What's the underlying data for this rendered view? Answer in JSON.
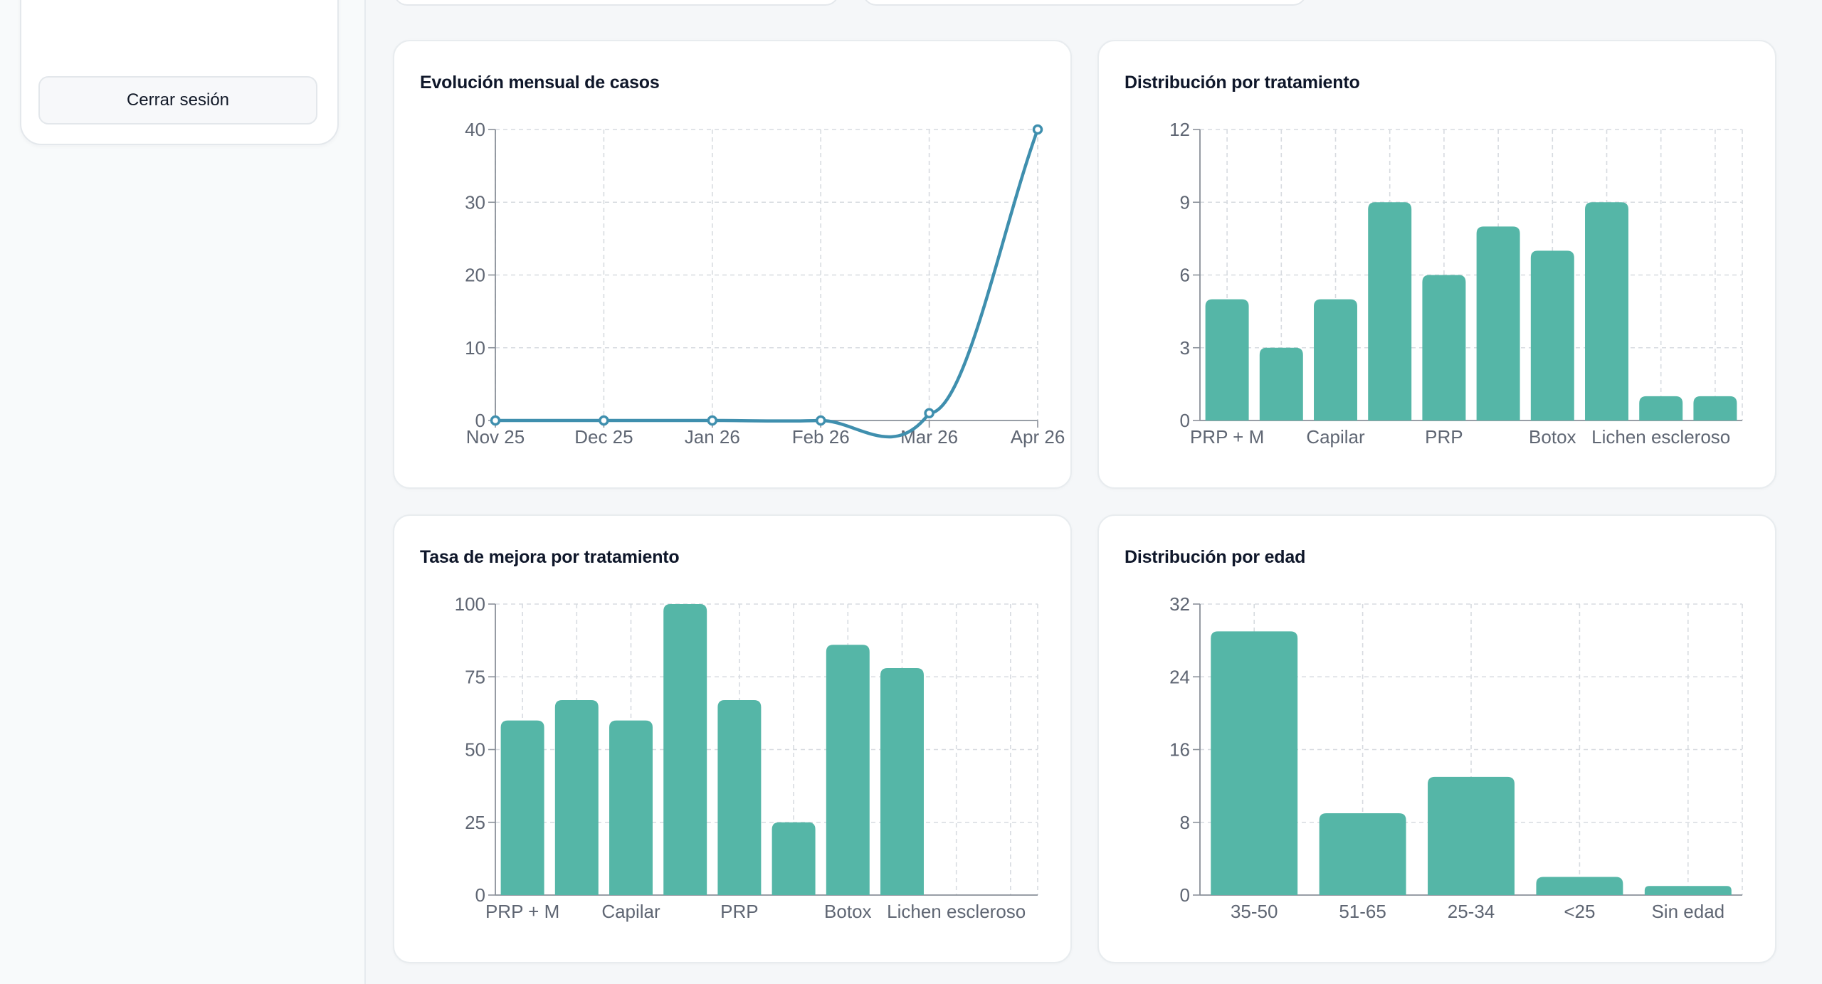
{
  "sidebar": {
    "logout_label": "Cerrar sesión"
  },
  "colors": {
    "bar": "#55b6a7",
    "line": "#3f8fae",
    "grid": "#d7dbe0",
    "axis": "#8a9099"
  },
  "chart_data": [
    {
      "id": "monthly",
      "type": "line",
      "title": "Evolución mensual de casos",
      "x": [
        "Nov 25",
        "Dec 25",
        "Jan 26",
        "Feb 26",
        "Mar 26",
        "Apr 26"
      ],
      "values": [
        0,
        0,
        0,
        0,
        1,
        40
      ],
      "ylim": [
        0,
        40
      ],
      "yticks": [
        0,
        10,
        20,
        30,
        40
      ],
      "grid": true
    },
    {
      "id": "treatment",
      "type": "bar",
      "title": "Distribución por tratamiento",
      "categories": [
        "PRP + M",
        "",
        "Capilar",
        "",
        "PRP",
        "",
        "Botox",
        "",
        "Lichen escleroso",
        ""
      ],
      "values": [
        5,
        3,
        5,
        9,
        6,
        8,
        7,
        9,
        1,
        1
      ],
      "ylim": [
        0,
        12
      ],
      "yticks": [
        0,
        3,
        6,
        9,
        12
      ],
      "grid": true
    },
    {
      "id": "improvement",
      "type": "bar",
      "title": "Tasa de mejora por tratamiento",
      "categories": [
        "PRP + M",
        "",
        "Capilar",
        "",
        "PRP",
        "",
        "Botox",
        "",
        "Lichen escleroso",
        ""
      ],
      "values": [
        60,
        67,
        60,
        100,
        67,
        25,
        86,
        78,
        0,
        0
      ],
      "ylim": [
        0,
        100
      ],
      "yticks": [
        0,
        25,
        50,
        75,
        100
      ],
      "grid": true
    },
    {
      "id": "age",
      "type": "bar",
      "title": "Distribución por edad",
      "categories": [
        "35-50",
        "51-65",
        "25-34",
        "<25",
        "Sin edad"
      ],
      "values": [
        29,
        9,
        13,
        2,
        1
      ],
      "ylim": [
        0,
        32
      ],
      "yticks": [
        0,
        8,
        16,
        24,
        32
      ],
      "grid": true
    }
  ]
}
